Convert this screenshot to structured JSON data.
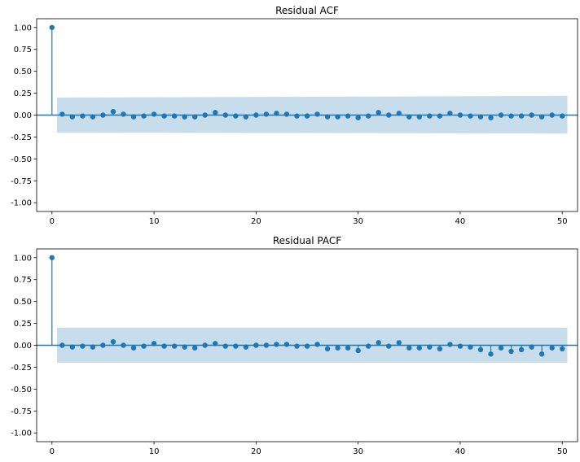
{
  "chart_data": [
    {
      "type": "stem",
      "title": "Residual ACF",
      "xlabel": "",
      "ylabel": "",
      "xlim": [
        -1.5,
        51.5
      ],
      "ylim": [
        -1.1,
        1.1
      ],
      "x_ticks": [
        0,
        10,
        20,
        30,
        40,
        50
      ],
      "y_ticks": [
        -1.0,
        -0.75,
        -0.5,
        -0.25,
        0.0,
        0.25,
        0.5,
        0.75,
        1.0
      ],
      "confidence_band": {
        "lower_at_lag1": -0.2,
        "upper_at_lag1": 0.2,
        "lower_at_lag50": -0.21,
        "upper_at_lag50": 0.22
      },
      "lags": [
        0,
        1,
        2,
        3,
        4,
        5,
        6,
        7,
        8,
        9,
        10,
        11,
        12,
        13,
        14,
        15,
        16,
        17,
        18,
        19,
        20,
        21,
        22,
        23,
        24,
        25,
        26,
        27,
        28,
        29,
        30,
        31,
        32,
        33,
        34,
        35,
        36,
        37,
        38,
        39,
        40,
        41,
        42,
        43,
        44,
        45,
        46,
        47,
        48,
        49,
        50
      ],
      "values": [
        1.0,
        0.01,
        -0.02,
        -0.01,
        -0.02,
        0.0,
        0.04,
        0.01,
        -0.02,
        -0.01,
        0.01,
        -0.01,
        -0.01,
        -0.02,
        -0.02,
        0.0,
        0.03,
        0.0,
        -0.01,
        -0.02,
        0.0,
        0.01,
        0.02,
        0.01,
        -0.01,
        -0.01,
        0.01,
        -0.02,
        -0.02,
        -0.01,
        -0.03,
        -0.01,
        0.03,
        0.0,
        0.02,
        -0.02,
        -0.02,
        -0.01,
        -0.01,
        0.02,
        0.0,
        -0.01,
        -0.02,
        -0.03,
        0.0,
        -0.01,
        -0.01,
        0.0,
        -0.02,
        0.0,
        -0.01
      ]
    },
    {
      "type": "stem",
      "title": "Residual PACF",
      "xlabel": "",
      "ylabel": "",
      "xlim": [
        -1.5,
        51.5
      ],
      "ylim": [
        -1.1,
        1.1
      ],
      "x_ticks": [
        0,
        10,
        20,
        30,
        40,
        50
      ],
      "y_ticks": [
        -1.0,
        -0.75,
        -0.5,
        -0.25,
        0.0,
        0.25,
        0.5,
        0.75,
        1.0
      ],
      "confidence_band": {
        "lower_at_lag1": -0.2,
        "upper_at_lag1": 0.2,
        "lower_at_lag50": -0.2,
        "upper_at_lag50": 0.2
      },
      "lags": [
        0,
        1,
        2,
        3,
        4,
        5,
        6,
        7,
        8,
        9,
        10,
        11,
        12,
        13,
        14,
        15,
        16,
        17,
        18,
        19,
        20,
        21,
        22,
        23,
        24,
        25,
        26,
        27,
        28,
        29,
        30,
        31,
        32,
        33,
        34,
        35,
        36,
        37,
        38,
        39,
        40,
        41,
        42,
        43,
        44,
        45,
        46,
        47,
        48,
        49,
        50
      ],
      "values": [
        1.0,
        0.0,
        -0.02,
        -0.01,
        -0.02,
        0.0,
        0.04,
        0.0,
        -0.03,
        -0.01,
        0.02,
        -0.01,
        -0.01,
        -0.02,
        -0.03,
        0.0,
        0.02,
        -0.01,
        -0.01,
        -0.02,
        0.0,
        0.0,
        0.01,
        0.01,
        -0.01,
        -0.01,
        0.01,
        -0.04,
        -0.03,
        -0.03,
        -0.06,
        -0.01,
        0.03,
        -0.01,
        0.03,
        -0.03,
        -0.03,
        -0.02,
        -0.04,
        0.01,
        -0.01,
        -0.02,
        -0.05,
        -0.1,
        -0.03,
        -0.07,
        -0.05,
        -0.02,
        -0.1,
        -0.03,
        -0.04
      ]
    }
  ],
  "colors": {
    "stem": "#1f77b4",
    "band": "#1f77b4",
    "band_opacity": 0.25
  }
}
